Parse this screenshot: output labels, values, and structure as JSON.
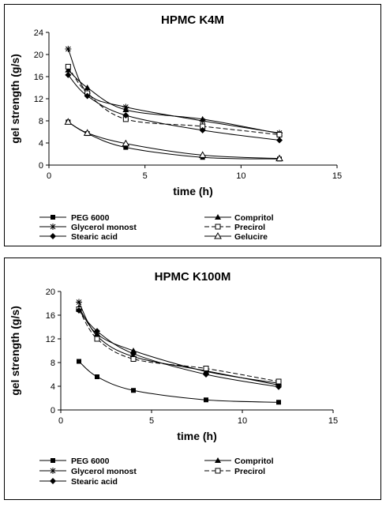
{
  "chart_data": [
    {
      "type": "line",
      "title": "HPMC K4M",
      "xlabel": "time (h)",
      "ylabel": "gel strength (g/s)",
      "xlim": [
        0,
        15
      ],
      "ylim": [
        0,
        24
      ],
      "xticks": [
        "0",
        "5",
        "10",
        "15"
      ],
      "yticks": [
        "0",
        "4",
        "8",
        "12",
        "16",
        "20",
        "24"
      ],
      "legend_position": "bottom",
      "grid": false,
      "series": [
        {
          "name": "PEG 6000",
          "marker": "square-filled",
          "dash": false,
          "x": [
            1,
            2,
            4,
            8,
            12
          ],
          "y": [
            7.8,
            5.7,
            3.2,
            1.4,
            1.1
          ]
        },
        {
          "name": "Compritol",
          "marker": "triangle-filled",
          "dash": false,
          "x": [
            1,
            2,
            4,
            8,
            12
          ],
          "y": [
            17.2,
            14.0,
            10.0,
            8.3,
            5.7
          ]
        },
        {
          "name": "Glycerol monost",
          "marker": "star",
          "dash": false,
          "x": [
            1,
            2,
            4,
            8,
            12
          ],
          "y": [
            21.0,
            13.0,
            10.5,
            8.0,
            5.8
          ]
        },
        {
          "name": "Precirol",
          "marker": "square-open",
          "dash": true,
          "x": [
            1,
            2,
            4,
            8,
            12
          ],
          "y": [
            17.8,
            13.0,
            8.3,
            7.0,
            5.5
          ]
        },
        {
          "name": "Stearic acid",
          "marker": "diamond-filled",
          "dash": false,
          "x": [
            1,
            2,
            4,
            8,
            12
          ],
          "y": [
            16.3,
            12.5,
            9.0,
            6.3,
            4.5
          ]
        },
        {
          "name": "Gelucire",
          "marker": "triangle-open",
          "dash": false,
          "x": [
            1,
            2,
            4,
            8,
            12
          ],
          "y": [
            7.8,
            5.8,
            3.9,
            1.8,
            1.2
          ]
        }
      ]
    },
    {
      "type": "line",
      "title": "HPMC K100M",
      "xlabel": "time (h)",
      "ylabel": "gel strength (g/s)",
      "xlim": [
        0,
        15
      ],
      "ylim": [
        0,
        20
      ],
      "xticks": [
        "0",
        "5",
        "10",
        "15"
      ],
      "yticks": [
        "0",
        "4",
        "8",
        "12",
        "16",
        "20"
      ],
      "legend_position": "bottom",
      "grid": false,
      "series": [
        {
          "name": "PEG 6000",
          "marker": "square-filled",
          "dash": false,
          "x": [
            1,
            2,
            4,
            8,
            12
          ],
          "y": [
            8.2,
            5.6,
            3.3,
            1.7,
            1.3
          ]
        },
        {
          "name": "Compritol",
          "marker": "triangle-filled",
          "dash": false,
          "x": [
            1,
            2,
            4,
            8,
            12
          ],
          "y": [
            17.3,
            12.8,
            10.0,
            6.5,
            4.5
          ]
        },
        {
          "name": "Glycerol monost",
          "marker": "star",
          "dash": false,
          "x": [
            1,
            2,
            4,
            8,
            12
          ],
          "y": [
            18.2,
            12.5,
            9.0,
            6.6,
            4.2
          ]
        },
        {
          "name": "Precirol",
          "marker": "square-open",
          "dash": true,
          "x": [
            1,
            2,
            4,
            8,
            12
          ],
          "y": [
            17.0,
            12.0,
            8.6,
            7.0,
            4.8
          ]
        },
        {
          "name": "Stearic acid",
          "marker": "diamond-filled",
          "dash": false,
          "x": [
            1,
            2,
            4,
            8,
            12
          ],
          "y": [
            16.8,
            13.3,
            9.5,
            6.0,
            3.9
          ]
        }
      ]
    }
  ]
}
